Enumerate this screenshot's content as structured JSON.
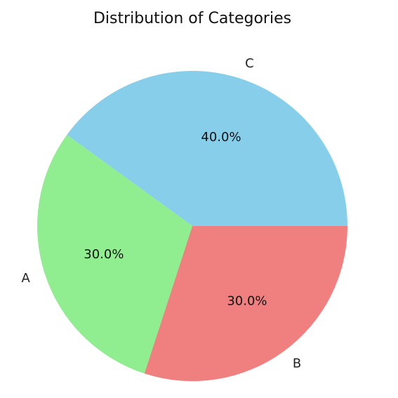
{
  "chart_data": {
    "type": "pie",
    "title": "Distribution of Categories",
    "categories": [
      "C",
      "A",
      "B"
    ],
    "values": [
      40,
      30,
      30
    ],
    "percent_labels": [
      "40.0%",
      "30.0%",
      "30.0%"
    ],
    "colors": [
      "#87CEEB",
      "#90EE90",
      "#F08080"
    ],
    "start_angle_deg": 0,
    "direction": "counterclockwise",
    "legend": "none"
  }
}
